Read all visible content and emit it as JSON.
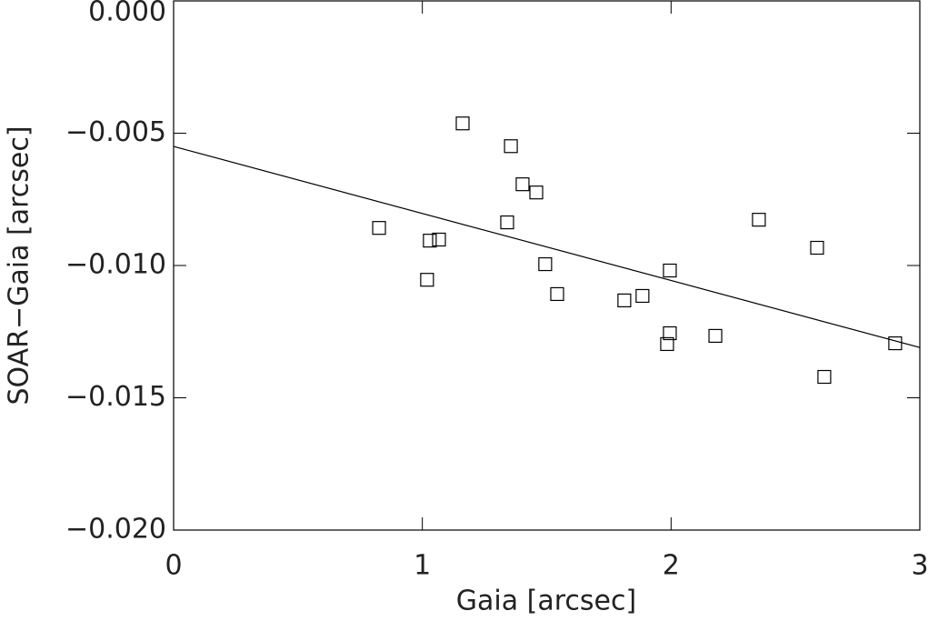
{
  "chart_data": {
    "type": "scatter",
    "x_label": "Gaia [arcsec]",
    "y_label": "SOAR−Gaia [arcsec]",
    "x": [
      0.826,
      1.03,
      1.067,
      1.019,
      1.162,
      1.356,
      1.403,
      1.458,
      1.341,
      1.494,
      1.542,
      1.812,
      1.885,
      1.995,
      1.995,
      1.984,
      2.178,
      2.353,
      2.587,
      2.616,
      2.901
    ],
    "values": [
      -0.00858,
      -0.00906,
      -0.00902,
      -0.01054,
      -0.00463,
      -0.00549,
      -0.00693,
      -0.00724,
      -0.00837,
      -0.00995,
      -0.01108,
      -0.01132,
      -0.01115,
      -0.01019,
      -0.01256,
      -0.01297,
      -0.01266,
      -0.00827,
      -0.00933,
      -0.01421,
      -0.01294
    ],
    "color": "#000000",
    "fit_line": {
      "x": [
        0,
        3
      ],
      "y": [
        -0.0055,
        -0.0131
      ],
      "color": "#000000"
    },
    "xlim": [
      0,
      3
    ],
    "xticks": [
      0,
      1,
      2,
      3
    ],
    "ylim": [
      -0.02,
      0
    ],
    "yticks": [
      {
        "value": -0.02,
        "label": "−0.020"
      },
      {
        "value": -0.015,
        "label": "−0.015"
      },
      {
        "value": -0.01,
        "label": "−0.010"
      },
      {
        "value": -0.005,
        "label": "−0.005"
      },
      {
        "value": 0,
        "label": "0.000"
      }
    ]
  }
}
